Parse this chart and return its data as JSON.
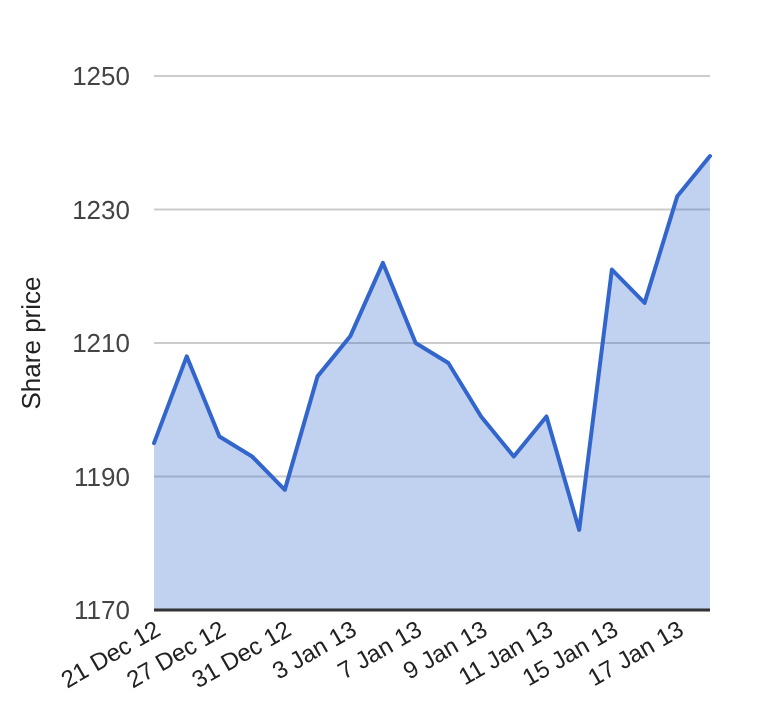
{
  "chart_data": {
    "type": "area",
    "ylabel": "Share price",
    "categories": [
      "21 Dec 12",
      null,
      "27 Dec 12",
      null,
      "31 Dec 12",
      null,
      "3 Jan 13",
      null,
      "7 Jan 13",
      null,
      "9 Jan 13",
      null,
      "11 Jan 13",
      null,
      "15 Jan 13",
      null,
      "17 Jan 13",
      null
    ],
    "series": [
      {
        "color": "#3366cc",
        "values": [
          1195,
          1208,
          1196,
          1193,
          1188,
          1205,
          1211,
          1222,
          1210,
          1207,
          1199,
          1193,
          1199,
          1182,
          1221,
          1216,
          1232,
          1238
        ]
      }
    ],
    "ylim": [
      1170,
      1250
    ],
    "yticks": [
      1170,
      1190,
      1210,
      1230,
      1250
    ],
    "grid": "y"
  }
}
